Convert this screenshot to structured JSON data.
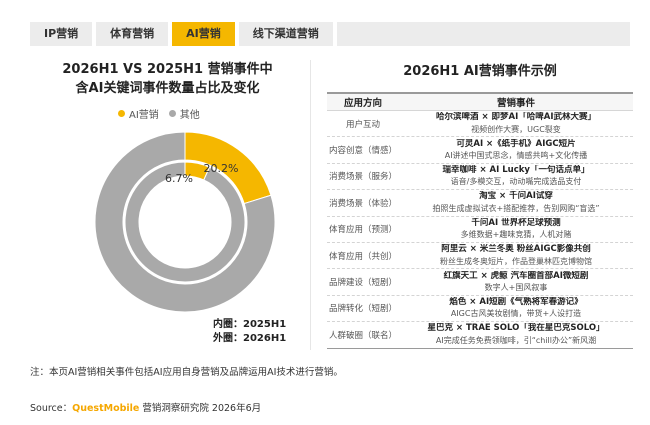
{
  "tabs": [
    {
      "label": "IP营销",
      "active": false
    },
    {
      "label": "体育营销",
      "active": false
    },
    {
      "label": "AI营销",
      "active": true
    },
    {
      "label": "线下渠道营销",
      "active": false
    }
  ],
  "colors": {
    "accent": "#f5b700",
    "grey": "#a9a9a9",
    "light": "#ececec"
  },
  "left_title_line1": "2026H1 VS 2025H1 营销事件中",
  "left_title_line2": "含AI关键词事件数量占比及变化",
  "ring_labels": {
    "inner_label": "内圈：",
    "inner_value": "2025H1",
    "outer_label": "外圈：",
    "outer_value": "2026H1"
  },
  "chart_data": {
    "type": "pie",
    "variant": "double-donut",
    "legend": [
      "AI营销",
      "其他"
    ],
    "legend_position": "top",
    "rings": [
      {
        "ring": "outer",
        "period": "2026H1",
        "values": [
          20.2,
          79.8
        ],
        "label": "20.2%"
      },
      {
        "ring": "inner",
        "period": "2025H1",
        "values": [
          6.7,
          93.3
        ],
        "label": "6.7%"
      }
    ]
  },
  "right_title": "2026H1 AI营销事件示例",
  "table": {
    "headers": [
      "应用方向",
      "营销事件"
    ],
    "rows": [
      {
        "direction": "用户互动",
        "title": "哈尔滨啤酒 × 即梦AI「哈啤AI武林大赛」",
        "desc": "视频创作大赛，UGC裂变"
      },
      {
        "direction": "内容创意（情感）",
        "title": "可灵AI ×《纸手机》AIGC短片",
        "desc": "AI讲述中国式思念，情感共鸣+文化传播"
      },
      {
        "direction": "消费场景（服务）",
        "title": "瑞幸咖啡 × AI Lucky「一句话点单」",
        "desc": "语音/多模交互，动动嘴完成选品支付"
      },
      {
        "direction": "消费场景（体验）",
        "title": "淘宝 × 千问AI试穿",
        "desc": "拍照生成虚拟试衣+搭配推荐，告别网购“盲选”"
      },
      {
        "direction": "体育应用（预测）",
        "title": "千问AI 世界杯足球预测",
        "desc": "多维数据+趣味竞猜，人机对赌"
      },
      {
        "direction": "体育应用（共创）",
        "title": "阿里云 × 米兰冬奥 粉丝AIGC影像共创",
        "desc": "粉丝生成冬奥短片，作品登巢林匹克博物馆"
      },
      {
        "direction": "品牌建设（短剧）",
        "title": "红旗天工 × 虎鲸 汽车圈首部AI微短剧",
        "desc": "数字人+国风叙事"
      },
      {
        "direction": "品牌转化（短剧）",
        "title": "焰色 × AI短剧《气熟将军春游记》",
        "desc": "AIGC古风美妆剧情，带货+人设打造"
      },
      {
        "direction": "人群破圈（联名）",
        "title": "星巴克 × TRAE SOLO「我在星巴克SOLO」",
        "desc": "AI完成任务免费领咖啡，引“chill办公”新风潮"
      }
    ]
  },
  "note": "注：本页AI营销相关事件包括AI应用自身营销及品牌运用AI技术进行营销。",
  "source_prefix": "Source：",
  "source_brand": "QuestMobile",
  "source_suffix": " 营销洞察研究院 2026年6月"
}
